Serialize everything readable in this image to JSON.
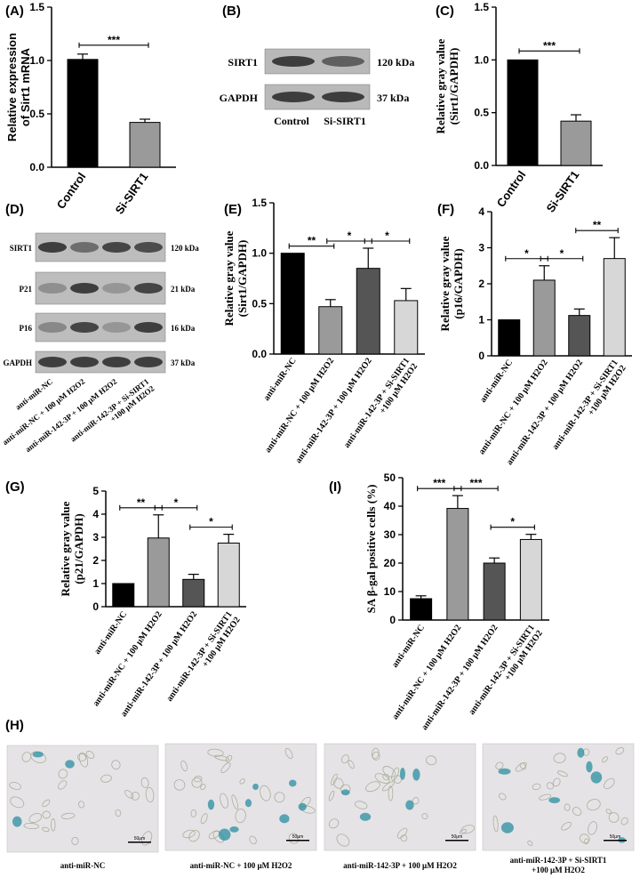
{
  "panel_labels": {
    "a": "(A)",
    "b": "(B)",
    "c": "(C)",
    "d": "(D)",
    "e": "(E)",
    "f": "(F)",
    "g": "(G)",
    "i": "(I)",
    "h": "(H)"
  },
  "colors": {
    "black": "#000000",
    "grey": "#9a9a9a",
    "dark": "#555555",
    "light": "#d7d7d7"
  },
  "chart_data": [
    {
      "id": "A",
      "type": "bar",
      "ylabel": "Relative expression\nof Sirt1 mRNA",
      "categories": [
        "Control",
        "Si-SIRT1"
      ],
      "values": [
        1.01,
        0.42
      ],
      "errors": [
        0.05,
        0.03
      ],
      "ylim": [
        0,
        1.5
      ],
      "yticks": [
        "0.0",
        "0.5",
        "1.0",
        "1.5"
      ],
      "significance": [
        {
          "from": 0,
          "to": 1,
          "label": "***"
        }
      ]
    },
    {
      "id": "C",
      "type": "bar",
      "ylabel": "Relative gray value\n(Sirt1/GAPDH)",
      "categories": [
        "Control",
        "Si-SIRT1"
      ],
      "values": [
        1.0,
        0.42
      ],
      "errors": [
        0.0,
        0.06
      ],
      "ylim": [
        0,
        1.5
      ],
      "yticks": [
        "0.0",
        "0.5",
        "1.0",
        "1.5"
      ],
      "significance": [
        {
          "from": 0,
          "to": 1,
          "label": "***"
        }
      ]
    },
    {
      "id": "E",
      "type": "bar",
      "ylabel": "Relative gray value\n(Sirt1/GAPDH)",
      "categories": [
        "anti-miR-NC",
        "anti-miR-NC + 100 μM H2O2",
        "anti-miR-142-3P + 100 μM H2O2",
        "anti-miR-142-3P + Si-SIRT1\n+100 μM H2O2"
      ],
      "values": [
        1.0,
        0.47,
        0.85,
        0.53
      ],
      "errors": [
        0.0,
        0.07,
        0.2,
        0.12
      ],
      "ylim": [
        0,
        1.5
      ],
      "yticks": [
        "0.0",
        "0.5",
        "1.0",
        "1.5"
      ],
      "significance": [
        {
          "from": 0,
          "to": 1,
          "label": "**"
        },
        {
          "from": 1,
          "to": 2,
          "label": "*"
        },
        {
          "from": 2,
          "to": 3,
          "label": "*"
        }
      ]
    },
    {
      "id": "F",
      "type": "bar",
      "ylabel": "Relative gray value\n(p16/GAPDH)",
      "categories": [
        "anti-miR-NC",
        "anti-miR-NC + 100 μM H2O2",
        "anti-miR-142-3P + 100 μM H2O2",
        "anti-miR-142-3P + Si-SIRT1\n+100 μM H2O2"
      ],
      "values": [
        1.0,
        2.1,
        1.12,
        2.7
      ],
      "errors": [
        0.0,
        0.4,
        0.18,
        0.58
      ],
      "ylim": [
        0,
        4
      ],
      "yticks": [
        "0",
        "1",
        "2",
        "3",
        "4"
      ],
      "significance": [
        {
          "from": 0,
          "to": 1,
          "label": "*"
        },
        {
          "from": 1,
          "to": 2,
          "label": "*"
        },
        {
          "from": 2,
          "to": 3,
          "label": "**"
        }
      ]
    },
    {
      "id": "G",
      "type": "bar",
      "ylabel": "Relative gray value\n(p21/GAPDH)",
      "categories": [
        "anti-miR-NC",
        "anti-miR-NC + 100 μM H2O2",
        "anti-miR-142-3P + 100 μM H2O2",
        "anti-miR-142-3P + Si-SIRT1\n+100 μM H2O2"
      ],
      "values": [
        1.0,
        2.97,
        1.18,
        2.75
      ],
      "errors": [
        0.0,
        1.0,
        0.22,
        0.38
      ],
      "ylim": [
        0,
        5
      ],
      "yticks": [
        "0",
        "1",
        "2",
        "3",
        "4",
        "5"
      ],
      "significance": [
        {
          "from": 0,
          "to": 1,
          "label": "**"
        },
        {
          "from": 1,
          "to": 2,
          "label": "*"
        },
        {
          "from": 2,
          "to": 3,
          "label": "*"
        }
      ]
    },
    {
      "id": "I",
      "type": "bar",
      "ylabel": "SA β-gal positive cells (%)",
      "categories": [
        "anti-miR-NC",
        "anti-miR-NC + 100 μM H2O2",
        "anti-miR-142-3P + 100 μM H2O2",
        "anti-miR-142-3P + Si-SIRT1\n+100 μM H2O2"
      ],
      "values": [
        7.5,
        39.2,
        20.0,
        28.3
      ],
      "errors": [
        1.0,
        4.5,
        1.8,
        1.8
      ],
      "ylim": [
        0,
        50
      ],
      "yticks": [
        "0",
        "10",
        "20",
        "30",
        "40",
        "50"
      ],
      "significance": [
        {
          "from": 0,
          "to": 1,
          "label": "***"
        },
        {
          "from": 1,
          "to": 2,
          "label": "***"
        },
        {
          "from": 2,
          "to": 3,
          "label": "*"
        }
      ]
    }
  ],
  "blot_b": {
    "rows": [
      {
        "name": "SIRT1",
        "size": "120 kDa"
      },
      {
        "name": "GAPDH",
        "size": "37 kDa"
      }
    ],
    "lanes": [
      "Control",
      "Si-SIRT1"
    ]
  },
  "blot_d": {
    "rows": [
      {
        "name": "SIRT1",
        "size": "120 kDa"
      },
      {
        "name": "P21",
        "size": "21 kDa"
      },
      {
        "name": "P16",
        "size": "16 kDa"
      },
      {
        "name": "GAPDH",
        "size": "37 kDa"
      }
    ],
    "lanes": [
      "anti-miR-NC",
      "anti-miR-NC + 100 μM H2O2",
      "anti-miR-142-3P + 100 μM H2O2",
      "anti-miR-142-3P + Si-SIRT1\n+100 μM H2O2"
    ]
  },
  "micrographs": {
    "captions": [
      "anti-miR-NC",
      "anti-miR-NC + 100 μM H2O2",
      "anti-miR-142-3P + 100 μM H2O2",
      "anti-miR-142-3P + Si-SIRT1\n+100 μM H2O2"
    ],
    "scale_bar": "50μm"
  }
}
